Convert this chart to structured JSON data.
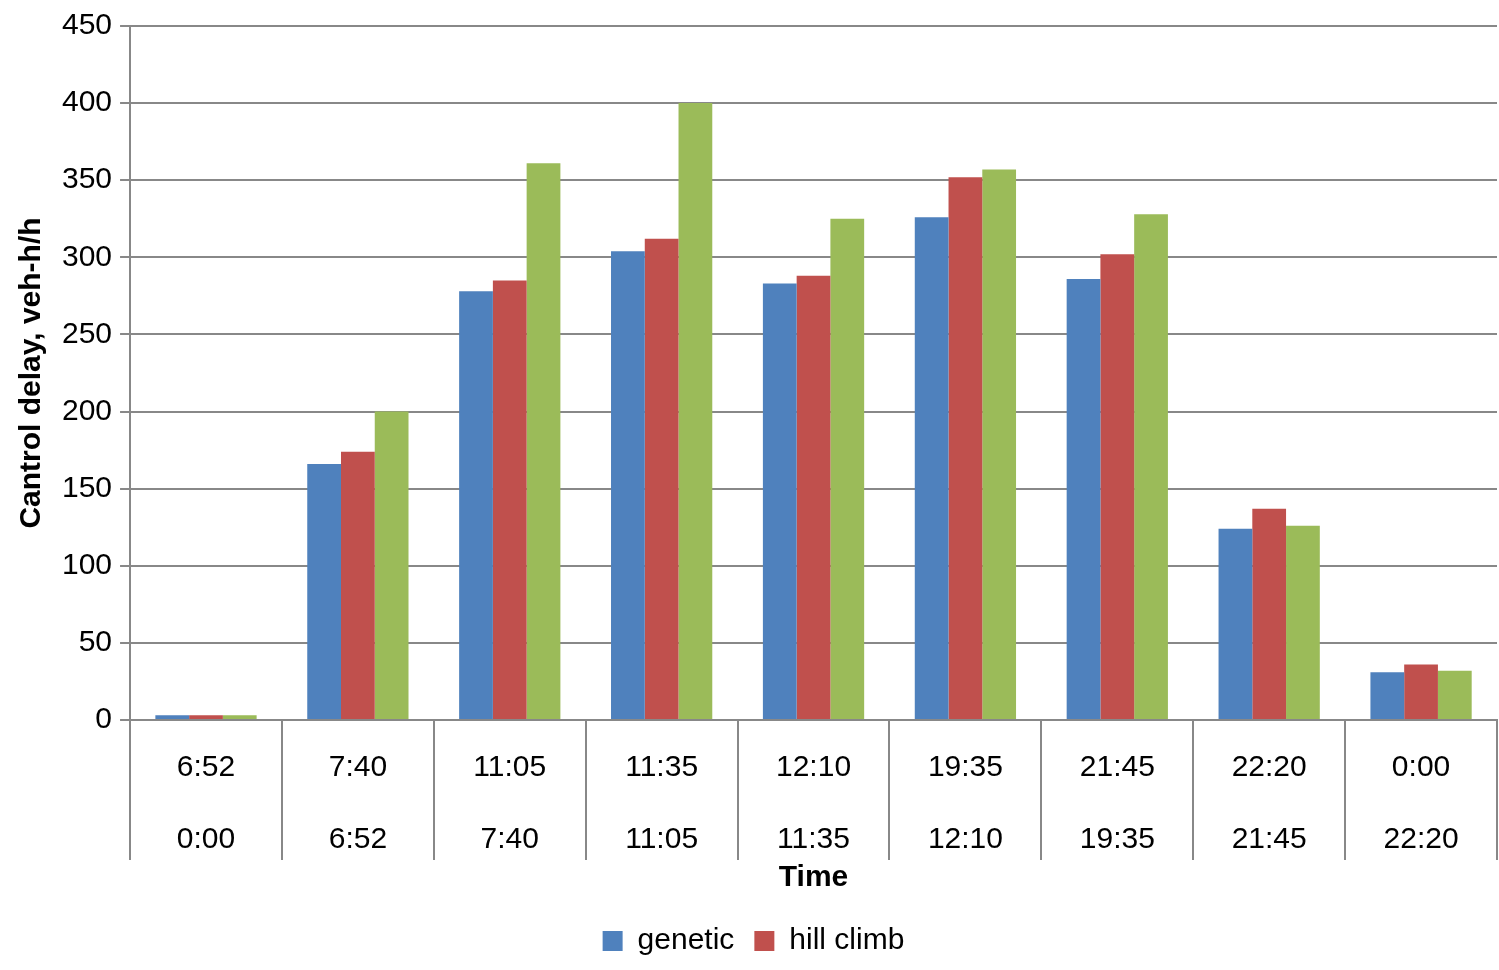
{
  "chart_data": {
    "type": "bar",
    "xlabel": "Time",
    "ylabel": "Cantrol delay, veh-h/h",
    "categories": [
      "6:52\n0:00",
      "7:40\n6:52",
      "11:05\n7:40",
      "11:35\n11:05",
      "12:10\n11:35",
      "19:35\n12:10",
      "21:45\n19:35",
      "22:20\n21:45",
      "0:00\n22:20"
    ],
    "series": [
      {
        "name": "genetic",
        "color": "#4f81bd",
        "values": [
          3,
          166,
          278,
          304,
          283,
          326,
          286,
          124,
          31
        ]
      },
      {
        "name": "hill climb",
        "color": "#c0504d",
        "values": [
          3,
          174,
          285,
          312,
          288,
          352,
          302,
          137,
          36
        ]
      },
      {
        "color": "#9bbb59",
        "values": [
          3,
          200,
          361,
          400,
          325,
          357,
          328,
          126,
          32
        ]
      }
    ],
    "ylim": [
      0,
      450
    ],
    "yticks": [
      0,
      50,
      100,
      150,
      200,
      250,
      300,
      350,
      400,
      450
    ],
    "grid": "y",
    "legend": "bottom"
  }
}
